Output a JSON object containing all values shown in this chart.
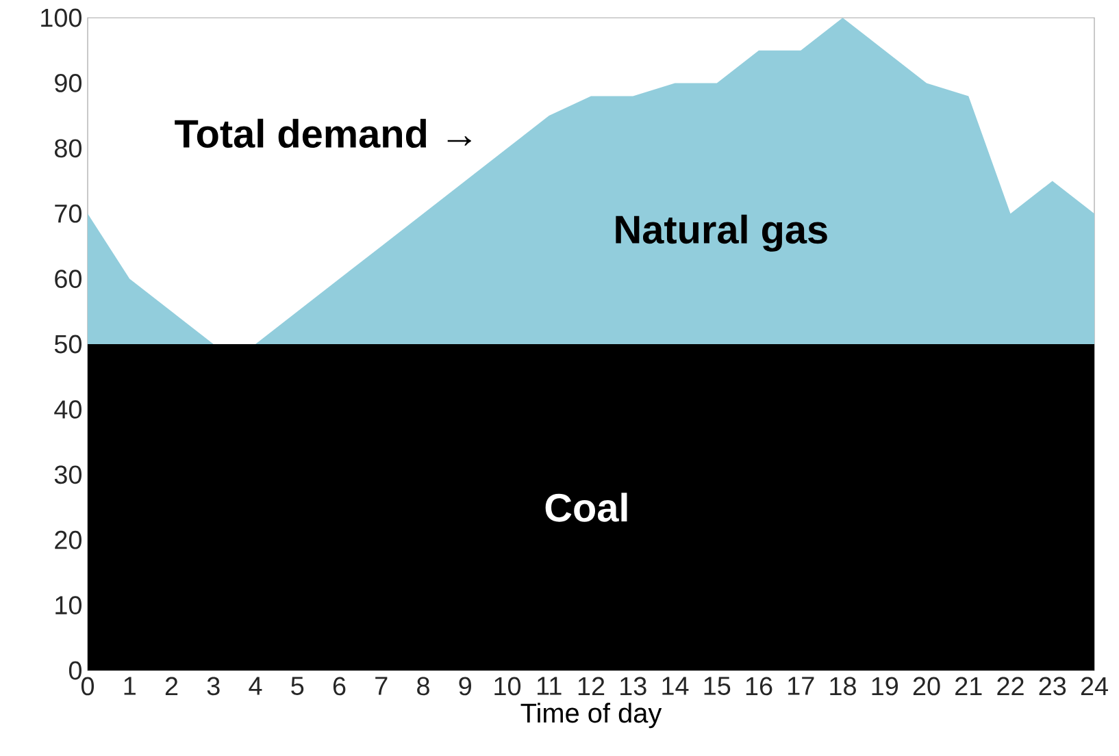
{
  "chart_data": {
    "type": "area",
    "stacked": true,
    "xlabel": "Time of day",
    "categories": [
      "0",
      "1",
      "2",
      "3",
      "4",
      "5",
      "6",
      "7",
      "8",
      "9",
      "10",
      "11",
      "12",
      "13",
      "14",
      "15",
      "16",
      "17",
      "18",
      "19",
      "20",
      "21",
      "22",
      "23",
      "24"
    ],
    "series": [
      {
        "name": "Coal",
        "color": "#000000",
        "values": [
          50,
          50,
          50,
          50,
          50,
          50,
          50,
          50,
          50,
          50,
          50,
          50,
          50,
          50,
          50,
          50,
          50,
          50,
          50,
          50,
          50,
          50,
          50,
          50,
          50
        ]
      },
      {
        "name": "Natural gas",
        "color": "#92cddc",
        "values": [
          20,
          10,
          5,
          0,
          0,
          5,
          10,
          15,
          20,
          25,
          30,
          35,
          38,
          38,
          40,
          40,
          45,
          45,
          50,
          45,
          40,
          38,
          20,
          25,
          20
        ]
      }
    ],
    "ylim": [
      0,
      100
    ],
    "yticks": [
      0,
      10,
      20,
      30,
      40,
      50,
      60,
      70,
      80,
      90,
      100
    ],
    "annotations": [
      "Total demand →"
    ],
    "grid": false
  }
}
